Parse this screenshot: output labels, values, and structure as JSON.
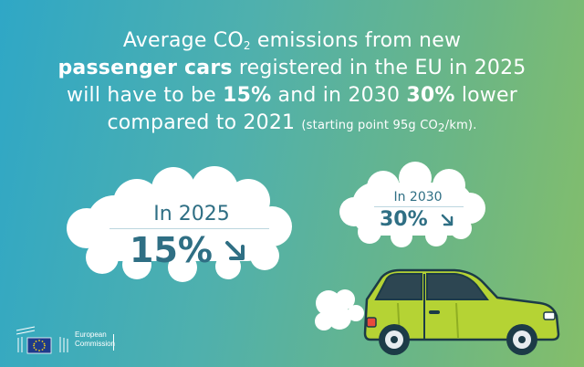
{
  "headline": {
    "line1_a": "Average CO",
    "line1_sub": "2",
    "line1_b": " emissions from new",
    "line2_bold": "passenger cars",
    "line2_rest": " registered in the EU in 2025",
    "line3_a": "will have to be ",
    "line3_bold1": "15%",
    "line3_b": " and in 2030 ",
    "line3_bold2": "30%",
    "line3_c": " lower",
    "line4_a": "compared to 2021 ",
    "line4_small_a": "(starting point 95g CO",
    "line4_small_sub": "2",
    "line4_small_b": "/km)."
  },
  "target_2025": {
    "label": "In 2025",
    "value": "15%"
  },
  "target_2030": {
    "label": "In 2030",
    "value": "30%"
  },
  "logo": {
    "line1": "European",
    "line2": "Commission"
  },
  "colors": {
    "accent_text": "#2f6f84",
    "car_body": "#b5d334",
    "cloud": "#ffffff",
    "gradient_left": "#2fa7c6",
    "gradient_right": "#84be6a"
  },
  "icons": [
    "down-right-arrow-icon",
    "car-illustration",
    "cloud-shape",
    "eu-flag-icon"
  ]
}
